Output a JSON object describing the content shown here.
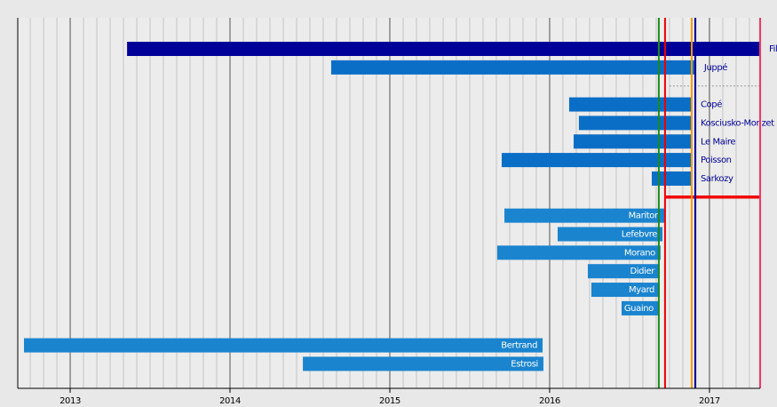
{
  "chart_data": {
    "type": "timeline",
    "xlim": [
      2012.672,
      2017.317
    ],
    "xticks": [
      2013,
      2014,
      2015,
      2016,
      2017
    ],
    "rows": [
      {
        "name": "Fillon",
        "start": 2013.356,
        "end": 2017.317,
        "color": "#000099",
        "label": "outside"
      },
      {
        "name": "Juppé",
        "start": 2014.633,
        "end": 2016.911,
        "color": "#0a6ec6",
        "label": "outside"
      },
      {
        "start": 2016.75,
        "end": 2017.317,
        "color": "#999999",
        "style": "dashed"
      },
      {
        "name": "Copé",
        "start": 2016.122,
        "end": 2016.889,
        "color": "#0a6ec6",
        "label": "outside"
      },
      {
        "name": "Kosciusko-Morizet",
        "start": 2016.183,
        "end": 2016.889,
        "color": "#0a6ec6",
        "label": "outside"
      },
      {
        "name": "Le Maire",
        "start": 2016.15,
        "end": 2016.889,
        "color": "#0a6ec6",
        "label": "outside"
      },
      {
        "name": "Poisson",
        "start": 2015.7,
        "end": 2016.889,
        "color": "#0a6ec6",
        "label": "outside"
      },
      {
        "name": "Sarkozy",
        "start": 2016.639,
        "end": 2016.889,
        "color": "#0a6ec6",
        "label": "outside"
      },
      {
        "start": 2016.722,
        "end": 2017.317,
        "color": "#ee0000",
        "style": "solid"
      },
      {
        "name": "Mariton",
        "start": 2015.717,
        "end": 2016.722,
        "color": "#1a84cf",
        "label": "inside"
      },
      {
        "name": "Lefebvre",
        "start": 2016.05,
        "end": 2016.706,
        "color": "#1a84cf",
        "label": "inside"
      },
      {
        "name": "Morano",
        "start": 2015.672,
        "end": 2016.694,
        "color": "#1a84cf",
        "label": "inside"
      },
      {
        "name": "Didier",
        "start": 2016.239,
        "end": 2016.689,
        "color": "#1a84cf",
        "label": "inside"
      },
      {
        "name": "Myard",
        "start": 2016.261,
        "end": 2016.689,
        "color": "#1a84cf",
        "label": "inside"
      },
      {
        "name": "Guaino",
        "start": 2016.45,
        "end": 2016.683,
        "color": "#1a84cf",
        "label": "inside"
      },
      null,
      {
        "name": "Bertrand",
        "start": 2012.711,
        "end": 2015.956,
        "color": "#1a84cf",
        "label": "inside"
      },
      {
        "name": "Estrosi",
        "start": 2014.456,
        "end": 2015.961,
        "color": "#1a84cf",
        "label": "inside"
      }
    ],
    "markers": [
      {
        "x": 2016.683,
        "color": "#1a8a1a"
      },
      {
        "x": 2016.722,
        "color": "#ee0000"
      },
      {
        "x": 2016.889,
        "color": "#ff9900"
      },
      {
        "x": 2016.911,
        "color": "#000099"
      },
      {
        "x": 2017.317,
        "color": "#ff3366"
      }
    ]
  }
}
